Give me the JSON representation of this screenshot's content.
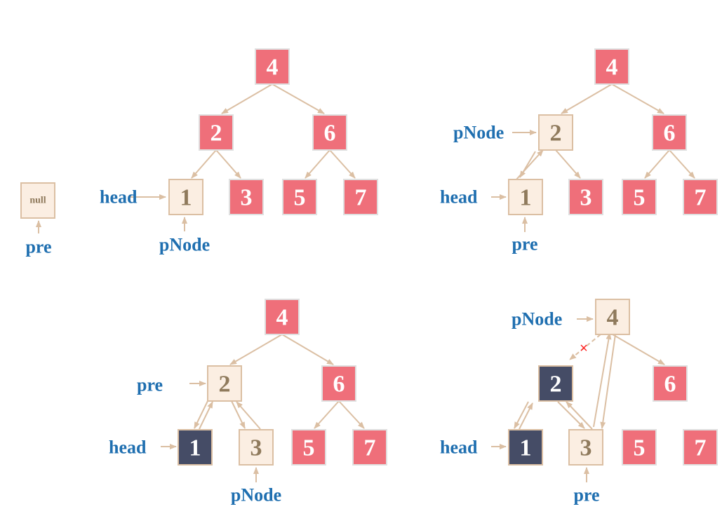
{
  "colors": {
    "visited_fill": "#fbeee2",
    "visited_stroke": "#dbbfa3",
    "visited_text": "#8f7a5c",
    "unvisited_fill": "#ef6f7a",
    "unvisited_stroke": "#dfe0e0",
    "unvisited_text": "#ffffff",
    "done_fill": "#454c66",
    "done_text": "#ffffff",
    "label_text": "#1f6fb0",
    "arrow": "#dbbfa3",
    "cross": "#ff2020"
  },
  "null_node": {
    "text": "null"
  },
  "null_pointer": {
    "text": "pre"
  },
  "panels": [
    {
      "nodes": [
        {
          "id": "4",
          "text": "4",
          "state": "unvisited"
        },
        {
          "id": "2",
          "text": "2",
          "state": "unvisited"
        },
        {
          "id": "6",
          "text": "6",
          "state": "unvisited"
        },
        {
          "id": "1",
          "text": "1",
          "state": "visited"
        },
        {
          "id": "3",
          "text": "3",
          "state": "unvisited"
        },
        {
          "id": "5",
          "text": "5",
          "state": "unvisited"
        },
        {
          "id": "7",
          "text": "7",
          "state": "unvisited"
        }
      ],
      "pointers": [
        {
          "text": "head",
          "target": "1"
        },
        {
          "text": "pNode",
          "target": "1"
        }
      ]
    },
    {
      "nodes": [
        {
          "id": "4",
          "text": "4",
          "state": "unvisited"
        },
        {
          "id": "2",
          "text": "2",
          "state": "visited"
        },
        {
          "id": "6",
          "text": "6",
          "state": "unvisited"
        },
        {
          "id": "1",
          "text": "1",
          "state": "visited"
        },
        {
          "id": "3",
          "text": "3",
          "state": "unvisited"
        },
        {
          "id": "5",
          "text": "5",
          "state": "unvisited"
        },
        {
          "id": "7",
          "text": "7",
          "state": "unvisited"
        }
      ],
      "pointers": [
        {
          "text": "pNode",
          "target": "2"
        },
        {
          "text": "head",
          "target": "1"
        },
        {
          "text": "pre",
          "target": "1"
        }
      ]
    },
    {
      "nodes": [
        {
          "id": "4",
          "text": "4",
          "state": "unvisited"
        },
        {
          "id": "2",
          "text": "2",
          "state": "visited"
        },
        {
          "id": "6",
          "text": "6",
          "state": "unvisited"
        },
        {
          "id": "1",
          "text": "1",
          "state": "done"
        },
        {
          "id": "3",
          "text": "3",
          "state": "visited"
        },
        {
          "id": "5",
          "text": "5",
          "state": "unvisited"
        },
        {
          "id": "7",
          "text": "7",
          "state": "unvisited"
        }
      ],
      "pointers": [
        {
          "text": "pre",
          "target": "2"
        },
        {
          "text": "head",
          "target": "1"
        },
        {
          "text": "pNode",
          "target": "3"
        }
      ]
    },
    {
      "nodes": [
        {
          "id": "4",
          "text": "4",
          "state": "visited"
        },
        {
          "id": "2",
          "text": "2",
          "state": "done"
        },
        {
          "id": "6",
          "text": "6",
          "state": "unvisited"
        },
        {
          "id": "1",
          "text": "1",
          "state": "done"
        },
        {
          "id": "3",
          "text": "3",
          "state": "visited"
        },
        {
          "id": "5",
          "text": "5",
          "state": "unvisited"
        },
        {
          "id": "7",
          "text": "7",
          "state": "unvisited"
        }
      ],
      "pointers": [
        {
          "text": "pNode",
          "target": "4"
        },
        {
          "text": "head",
          "target": "1"
        },
        {
          "text": "pre",
          "target": "3"
        }
      ],
      "removed_link_mark": "×"
    }
  ]
}
